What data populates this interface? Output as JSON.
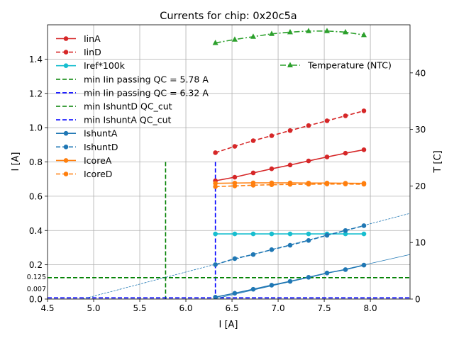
{
  "chart_data": {
    "type": "line",
    "title": "Currents for chip: 0x20c5a",
    "xlabel": "I [A]",
    "ylabel": "I [A]",
    "ylabel_right": "T [C]",
    "xlim": [
      4.5,
      8.43
    ],
    "ylim": [
      0,
      1.6
    ],
    "ylim_right": [
      0,
      48.5
    ],
    "grid": true,
    "x_ticks": [
      "4.5",
      "5.0",
      "5.5",
      "6.0",
      "6.5",
      "7.0",
      "7.5",
      "8.0"
    ],
    "x_tick_values": [
      4.5,
      5.0,
      5.5,
      6.0,
      6.5,
      7.0,
      7.5,
      8.0
    ],
    "y_ticks": [
      "0.0",
      "0.2",
      "0.4",
      "0.6",
      "0.8",
      "1.0",
      "1.2",
      "1.4"
    ],
    "y_tick_values": [
      0,
      0.2,
      0.4,
      0.6,
      0.8,
      1.0,
      1.2,
      1.4
    ],
    "y_right_ticks": [
      "0",
      "10",
      "20",
      "30",
      "40"
    ],
    "y_right_tick_values": [
      0,
      10,
      20,
      30,
      40
    ],
    "extra_y_labels": [
      {
        "value": 0.125,
        "label": "0.125"
      },
      {
        "value": 0.007,
        "label": "0.007"
      }
    ],
    "x": [
      6.32,
      6.53,
      6.73,
      6.93,
      7.13,
      7.33,
      7.53,
      7.73,
      7.93
    ],
    "series": [
      {
        "name": "IinA",
        "color": "#d62728",
        "dash": "solid",
        "marker": "circle",
        "values": [
          0.69,
          0.711,
          0.736,
          0.76,
          0.782,
          0.806,
          0.829,
          0.851,
          0.871
        ]
      },
      {
        "name": "IinD",
        "color": "#d62728",
        "dash": "dashed",
        "marker": "circle",
        "values": [
          0.854,
          0.891,
          0.924,
          0.953,
          0.983,
          1.012,
          1.04,
          1.069,
          1.098
        ]
      },
      {
        "name": "Iref*100k",
        "color": "#17becf",
        "dash": "solid",
        "marker": "circle",
        "values": [
          0.38,
          0.38,
          0.38,
          0.38,
          0.38,
          0.38,
          0.38,
          0.38,
          0.38
        ]
      },
      {
        "name": "IshuntA",
        "color": "#1f77b4",
        "dash": "solid",
        "marker": "circle",
        "values": [
          0.011,
          0.034,
          0.057,
          0.081,
          0.103,
          0.127,
          0.152,
          0.172,
          0.198
        ]
      },
      {
        "name": "IshuntD",
        "color": "#1f77b4",
        "dash": "dashed",
        "marker": "circle",
        "values": [
          0.201,
          0.236,
          0.26,
          0.288,
          0.314,
          0.342,
          0.372,
          0.4,
          0.428
        ]
      },
      {
        "name": "IcoreA",
        "color": "#ff7f0e",
        "dash": "solid",
        "marker": "circle",
        "values": [
          0.675,
          0.677,
          0.678,
          0.678,
          0.678,
          0.677,
          0.677,
          0.676,
          0.675
        ]
      },
      {
        "name": "IcoreD",
        "color": "#ff7f0e",
        "dash": "dashed",
        "marker": "circle",
        "values": [
          0.656,
          0.66,
          0.664,
          0.667,
          0.669,
          0.67,
          0.671,
          0.671,
          0.67
        ]
      }
    ],
    "temperature": {
      "name": "Temperature (NTC)",
      "color": "#2ca02c",
      "dash": "dashdot",
      "marker": "triangle",
      "axis": "right",
      "values": [
        45.3,
        45.9,
        46.4,
        46.9,
        47.2,
        47.4,
        47.4,
        47.2,
        46.7
      ]
    },
    "fits": [
      {
        "of": "IshuntD",
        "color": "#1f77b4",
        "dash": "dashed",
        "x": [
          4.88,
          8.43
        ],
        "y": [
          0,
          0.5
        ]
      },
      {
        "of": "IshuntA",
        "color": "#1f77b4",
        "dash": "solid",
        "x": [
          6.3,
          8.43
        ],
        "y": [
          0,
          0.26
        ]
      }
    ],
    "reference_lines": [
      {
        "name": "min Iin passing QC = 5.78 A",
        "orientation": "vertical",
        "value": 5.78,
        "ymax": 0.8,
        "color": "#008000"
      },
      {
        "name": "min Iin passing QC = 6.32 A",
        "orientation": "vertical",
        "value": 6.32,
        "ymax": 0.8,
        "color": "#0000ff"
      },
      {
        "name": "min IshuntD QC_cut",
        "orientation": "horizontal",
        "value": 0.125,
        "color": "#008000"
      },
      {
        "name": "min IshuntA QC_cut",
        "orientation": "horizontal",
        "value": 0.007,
        "color": "#0000ff"
      }
    ],
    "legend_left": [
      {
        "label": "IinA",
        "color": "#d62728",
        "dash": "solid",
        "marker": "circle"
      },
      {
        "label": "IinD",
        "color": "#d62728",
        "dash": "dashed",
        "marker": "circle"
      },
      {
        "label": "Iref*100k",
        "color": "#17becf",
        "dash": "solid",
        "marker": "circle"
      },
      {
        "label": "min Iin passing QC = 5.78 A",
        "color": "#008000",
        "dash": "dashed",
        "marker": "none"
      },
      {
        "label": "min Iin passing QC = 6.32 A",
        "color": "#0000ff",
        "dash": "dashed",
        "marker": "none"
      },
      {
        "label": "min IshuntD QC_cut",
        "color": "#008000",
        "dash": "dashed",
        "marker": "none"
      },
      {
        "label": "min IshuntA QC_cut",
        "color": "#0000ff",
        "dash": "dashed",
        "marker": "none"
      },
      {
        "label": "IshuntA",
        "color": "#1f77b4",
        "dash": "solid",
        "marker": "circle"
      },
      {
        "label": "IshuntD",
        "color": "#1f77b4",
        "dash": "dashed",
        "marker": "circle"
      },
      {
        "label": "IcoreA",
        "color": "#ff7f0e",
        "dash": "solid",
        "marker": "circle"
      },
      {
        "label": "IcoreD",
        "color": "#ff7f0e",
        "dash": "dashed",
        "marker": "circle"
      }
    ],
    "legend_left_placement": "top-left",
    "legend_right": [
      {
        "label": "Temperature (NTC)",
        "color": "#2ca02c",
        "dash": "dashdot",
        "marker": "triangle"
      }
    ],
    "legend_right_placement": "upper-right"
  }
}
